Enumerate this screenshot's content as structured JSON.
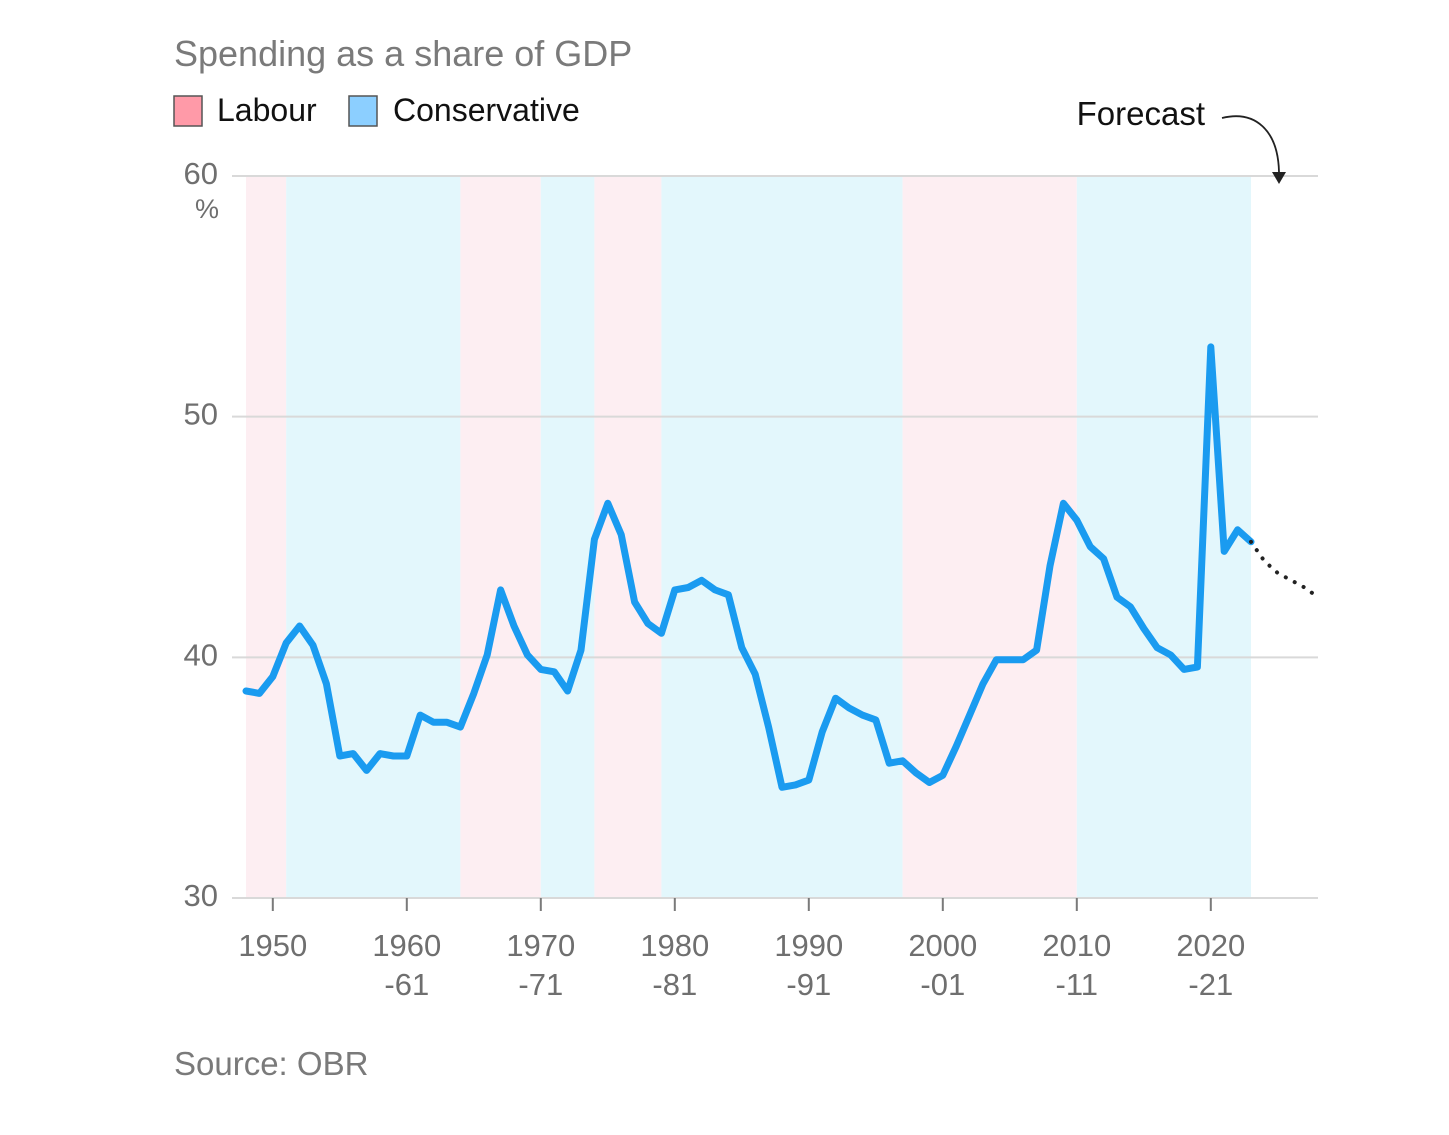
{
  "title": "Spending as a share of GDP",
  "source": "Source: OBR",
  "colors": {
    "labour_band": "#fdeef2",
    "conservative_band": "#e3f7fc",
    "labour_swatch": "#ff9aa8",
    "conservative_swatch": "#8ccfff",
    "line": "#1a9bf0",
    "forecast": "#222222"
  },
  "chart_data": {
    "type": "line",
    "title": "Spending as a share of GDP",
    "ylabel": "%",
    "ylim": [
      30,
      60
    ],
    "xlim": [
      1948,
      2028
    ],
    "yticks": [
      30,
      40,
      50,
      60
    ],
    "ytick_unit": "%",
    "grid": true,
    "legend": [
      {
        "name": "Labour",
        "color": "#ff9aa8"
      },
      {
        "name": "Conservative",
        "color": "#8ccfff"
      }
    ],
    "xticks": [
      {
        "x": 1950,
        "line1": "1950",
        "line2": ""
      },
      {
        "x": 1960,
        "line1": "1960",
        "line2": "-61"
      },
      {
        "x": 1970,
        "line1": "1970",
        "line2": "-71"
      },
      {
        "x": 1980,
        "line1": "1980",
        "line2": "-81"
      },
      {
        "x": 1990,
        "line1": "1990",
        "line2": "-91"
      },
      {
        "x": 2000,
        "line1": "2000",
        "line2": "-01"
      },
      {
        "x": 2010,
        "line1": "2010",
        "line2": "-11"
      },
      {
        "x": 2020,
        "line1": "2020",
        "line2": "-21"
      }
    ],
    "party_periods": [
      {
        "party": "Labour",
        "start": 1948,
        "end": 1951
      },
      {
        "party": "Conservative",
        "start": 1951,
        "end": 1964
      },
      {
        "party": "Labour",
        "start": 1964,
        "end": 1970
      },
      {
        "party": "Conservative",
        "start": 1970,
        "end": 1974
      },
      {
        "party": "Labour",
        "start": 1974,
        "end": 1979
      },
      {
        "party": "Conservative",
        "start": 1979,
        "end": 1997
      },
      {
        "party": "Labour",
        "start": 1997,
        "end": 2010
      },
      {
        "party": "Conservative",
        "start": 2010,
        "end": 2023
      }
    ],
    "series": [
      {
        "name": "",
        "x": [
          1948,
          1949,
          1950,
          1951,
          1952,
          1953,
          1954,
          1955,
          1956,
          1957,
          1958,
          1959,
          1960,
          1961,
          1962,
          1963,
          1964,
          1965,
          1966,
          1967,
          1968,
          1969,
          1970,
          1971,
          1972,
          1973,
          1974,
          1975,
          1976,
          1977,
          1978,
          1979,
          1980,
          1981,
          1982,
          1983,
          1984,
          1985,
          1986,
          1987,
          1988,
          1989,
          1990,
          1991,
          1992,
          1993,
          1994,
          1995,
          1996,
          1997,
          1998,
          1999,
          2000,
          2001,
          2002,
          2003,
          2004,
          2005,
          2006,
          2007,
          2008,
          2009,
          2010,
          2011,
          2012,
          2013,
          2014,
          2015,
          2016,
          2017,
          2018,
          2019,
          2020,
          2021,
          2022,
          2023
        ],
        "values": [
          38.6,
          38.5,
          39.2,
          40.6,
          41.3,
          40.5,
          38.9,
          35.9,
          36.0,
          35.3,
          36.0,
          35.9,
          35.9,
          37.6,
          37.3,
          37.3,
          37.1,
          38.5,
          40.1,
          42.8,
          41.3,
          40.1,
          39.5,
          39.4,
          38.6,
          40.3,
          44.9,
          46.4,
          45.1,
          42.3,
          41.4,
          41.0,
          42.8,
          42.9,
          43.2,
          42.8,
          42.6,
          40.4,
          39.3,
          37.1,
          34.6,
          34.7,
          34.9,
          36.9,
          38.3,
          37.9,
          37.6,
          37.4,
          35.6,
          35.7,
          35.2,
          34.8,
          35.1,
          36.3,
          37.6,
          38.9,
          39.9,
          39.9,
          39.9,
          40.3,
          43.8,
          46.4,
          45.7,
          44.6,
          44.1,
          42.5,
          42.1,
          41.2,
          40.4,
          40.1,
          39.5,
          39.6,
          52.9,
          44.4,
          45.3,
          44.8
        ]
      },
      {
        "name": "Forecast",
        "x": [
          2023,
          2024,
          2025,
          2026,
          2027,
          2028
        ],
        "values": [
          44.8,
          44.0,
          43.5,
          43.2,
          42.9,
          42.5
        ]
      }
    ],
    "annotations": [
      {
        "text": "Forecast"
      }
    ]
  }
}
